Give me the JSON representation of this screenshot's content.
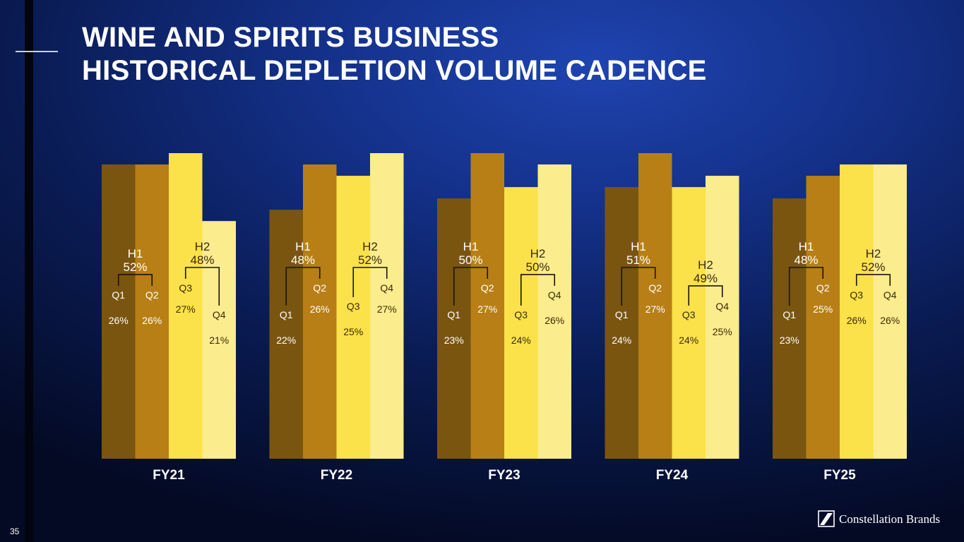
{
  "slide": {
    "title_line1": "WINE AND SPIRITS BUSINESS",
    "title_line2": "HISTORICAL DEPLETION VOLUME CADENCE",
    "page_number": "35",
    "logo_text": "Constellation Brands"
  },
  "colors": {
    "Q1": "#7a5510",
    "Q2": "#b77f16",
    "Q3": "#fbe14a",
    "Q4": "#fbec8e",
    "label_on_dark": "#ffffff",
    "label_on_light": "#3a2a08",
    "bracket": "#1a1405"
  },
  "chart_data": {
    "type": "bar",
    "categories": [
      "FY21",
      "FY22",
      "FY23",
      "FY24",
      "FY25"
    ],
    "series": [
      {
        "name": "Q1",
        "values": [
          26,
          22,
          23,
          24,
          23
        ]
      },
      {
        "name": "Q2",
        "values": [
          26,
          26,
          27,
          27,
          25
        ]
      },
      {
        "name": "Q3",
        "values": [
          27,
          25,
          24,
          24,
          26
        ]
      },
      {
        "name": "Q4",
        "values": [
          21,
          27,
          26,
          25,
          26
        ]
      }
    ],
    "halves": [
      {
        "year": "FY21",
        "H1": 52,
        "H2": 48
      },
      {
        "year": "FY22",
        "H1": 48,
        "H2": 52
      },
      {
        "year": "FY23",
        "H1": 50,
        "H2": 50
      },
      {
        "year": "FY24",
        "H1": 51,
        "H2": 49
      },
      {
        "year": "FY25",
        "H1": 48,
        "H2": 52
      }
    ],
    "quarter_labels": [
      "Q1",
      "Q2",
      "Q3",
      "Q4"
    ],
    "half_labels": [
      "H1",
      "H2"
    ],
    "value_suffix": "%",
    "ylim": [
      0,
      27
    ],
    "grid": false,
    "legend": "none"
  }
}
